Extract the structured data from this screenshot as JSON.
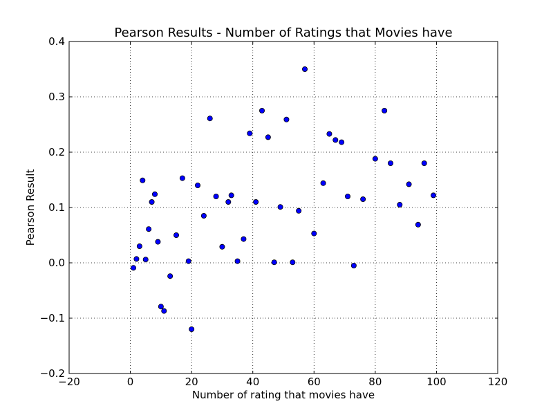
{
  "chart_data": {
    "type": "scatter",
    "title": "Pearson Results - Number of Ratings that Movies have",
    "xlabel": "Number of rating that movies have",
    "ylabel": "Pearson Result",
    "xlim": [
      -20,
      120
    ],
    "ylim": [
      -0.2,
      0.4
    ],
    "xticks": [
      "−20",
      "0",
      "20",
      "40",
      "60",
      "80",
      "100",
      "120"
    ],
    "yticks": [
      "−0.2",
      "−0.1",
      "0.0",
      "0.1",
      "0.2",
      "0.3",
      "0.4"
    ],
    "grid": true,
    "marker_color": "#0000ff",
    "marker_edge_color": "#000000",
    "points": [
      {
        "x": 1,
        "y": -0.009
      },
      {
        "x": 2,
        "y": 0.007
      },
      {
        "x": 3,
        "y": 0.03
      },
      {
        "x": 4,
        "y": 0.149
      },
      {
        "x": 5,
        "y": 0.006
      },
      {
        "x": 6,
        "y": 0.061
      },
      {
        "x": 7,
        "y": 0.11
      },
      {
        "x": 8,
        "y": 0.124
      },
      {
        "x": 9,
        "y": 0.038
      },
      {
        "x": 10,
        "y": -0.079
      },
      {
        "x": 11,
        "y": -0.087
      },
      {
        "x": 13,
        "y": -0.024
      },
      {
        "x": 15,
        "y": 0.05
      },
      {
        "x": 17,
        "y": 0.153
      },
      {
        "x": 19,
        "y": 0.003
      },
      {
        "x": 20,
        "y": -0.12
      },
      {
        "x": 22,
        "y": 0.14
      },
      {
        "x": 24,
        "y": 0.085
      },
      {
        "x": 26,
        "y": 0.261
      },
      {
        "x": 28,
        "y": 0.12
      },
      {
        "x": 30,
        "y": 0.029
      },
      {
        "x": 32,
        "y": 0.11
      },
      {
        "x": 33,
        "y": 0.122
      },
      {
        "x": 35,
        "y": 0.003
      },
      {
        "x": 37,
        "y": 0.043
      },
      {
        "x": 39,
        "y": 0.234
      },
      {
        "x": 41,
        "y": 0.11
      },
      {
        "x": 43,
        "y": 0.275
      },
      {
        "x": 45,
        "y": 0.227
      },
      {
        "x": 47,
        "y": 0.001
      },
      {
        "x": 49,
        "y": 0.101
      },
      {
        "x": 51,
        "y": 0.259
      },
      {
        "x": 53,
        "y": 0.001
      },
      {
        "x": 55,
        "y": 0.094
      },
      {
        "x": 57,
        "y": 0.35
      },
      {
        "x": 60,
        "y": 0.053
      },
      {
        "x": 63,
        "y": 0.144
      },
      {
        "x": 65,
        "y": 0.233
      },
      {
        "x": 67,
        "y": 0.222
      },
      {
        "x": 69,
        "y": 0.218
      },
      {
        "x": 71,
        "y": 0.12
      },
      {
        "x": 73,
        "y": -0.005
      },
      {
        "x": 76,
        "y": 0.115
      },
      {
        "x": 80,
        "y": 0.188
      },
      {
        "x": 83,
        "y": 0.275
      },
      {
        "x": 85,
        "y": 0.18
      },
      {
        "x": 88,
        "y": 0.105
      },
      {
        "x": 91,
        "y": 0.142
      },
      {
        "x": 94,
        "y": 0.069
      },
      {
        "x": 96,
        "y": 0.18
      },
      {
        "x": 99,
        "y": 0.122
      }
    ]
  }
}
